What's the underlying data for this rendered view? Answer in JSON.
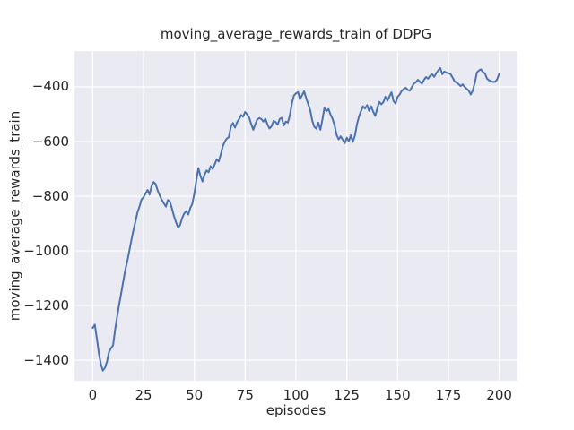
{
  "chart_data": {
    "type": "line",
    "title": "moving_average_rewards_train of DDPG",
    "xlabel": "episodes",
    "ylabel": "moving_average_rewards_train",
    "legend": "none",
    "grid": true,
    "xlim": [
      -9,
      209
    ],
    "ylim": [
      -1475,
      -269
    ],
    "x_ticks": [
      {
        "v": 0,
        "label": "0"
      },
      {
        "v": 25,
        "label": "25"
      },
      {
        "v": 50,
        "label": "50"
      },
      {
        "v": 75,
        "label": "75"
      },
      {
        "v": 100,
        "label": "100"
      },
      {
        "v": 125,
        "label": "125"
      },
      {
        "v": 150,
        "label": "150"
      },
      {
        "v": 175,
        "label": "175"
      },
      {
        "v": 200,
        "label": "200"
      }
    ],
    "y_ticks": [
      {
        "v": -400,
        "label": "−400"
      },
      {
        "v": -600,
        "label": "−600"
      },
      {
        "v": -800,
        "label": "−800"
      },
      {
        "v": -1000,
        "label": "−1000"
      },
      {
        "v": -1200,
        "label": "−1200"
      },
      {
        "v": -1400,
        "label": "−1400"
      }
    ],
    "colors": {
      "line": "#4C72B0",
      "plot_background": "#EAEAF2",
      "grid": "#FFFFFF",
      "text": "#262626",
      "figure_background": "#FFFFFF"
    },
    "series": [
      {
        "name": "DDPG",
        "color": "#4C72B0",
        "x_start": 0,
        "x_step": 1,
        "values": [
          -1282,
          -1270,
          -1318,
          -1373,
          -1415,
          -1438,
          -1428,
          -1405,
          -1370,
          -1356,
          -1345,
          -1290,
          -1240,
          -1195,
          -1155,
          -1112,
          -1070,
          -1038,
          -1000,
          -962,
          -925,
          -893,
          -860,
          -838,
          -812,
          -804,
          -790,
          -777,
          -794,
          -762,
          -748,
          -756,
          -780,
          -798,
          -813,
          -826,
          -838,
          -814,
          -820,
          -846,
          -873,
          -896,
          -916,
          -905,
          -880,
          -863,
          -855,
          -867,
          -843,
          -828,
          -790,
          -740,
          -697,
          -726,
          -746,
          -722,
          -706,
          -712,
          -690,
          -700,
          -684,
          -665,
          -673,
          -647,
          -617,
          -600,
          -589,
          -584,
          -545,
          -532,
          -549,
          -530,
          -518,
          -503,
          -509,
          -492,
          -501,
          -513,
          -536,
          -557,
          -536,
          -519,
          -514,
          -518,
          -527,
          -517,
          -538,
          -552,
          -544,
          -524,
          -529,
          -538,
          -517,
          -513,
          -541,
          -527,
          -531,
          -504,
          -460,
          -432,
          -424,
          -419,
          -445,
          -431,
          -416,
          -440,
          -463,
          -486,
          -523,
          -546,
          -553,
          -531,
          -557,
          -519,
          -477,
          -489,
          -481,
          -501,
          -517,
          -541,
          -576,
          -592,
          -581,
          -593,
          -606,
          -586,
          -599,
          -577,
          -601,
          -579,
          -537,
          -509,
          -489,
          -471,
          -479,
          -467,
          -488,
          -471,
          -491,
          -506,
          -479,
          -455,
          -464,
          -456,
          -436,
          -451,
          -435,
          -420,
          -452,
          -461,
          -437,
          -428,
          -415,
          -408,
          -403,
          -411,
          -414,
          -401,
          -388,
          -383,
          -374,
          -382,
          -388,
          -374,
          -364,
          -370,
          -359,
          -354,
          -363,
          -350,
          -340,
          -331,
          -354,
          -344,
          -348,
          -350,
          -353,
          -365,
          -379,
          -385,
          -390,
          -397,
          -391,
          -400,
          -407,
          -414,
          -428,
          -414,
          -385,
          -348,
          -340,
          -336,
          -346,
          -351,
          -370,
          -376,
          -379,
          -382,
          -381,
          -373,
          -352
        ]
      }
    ]
  }
}
